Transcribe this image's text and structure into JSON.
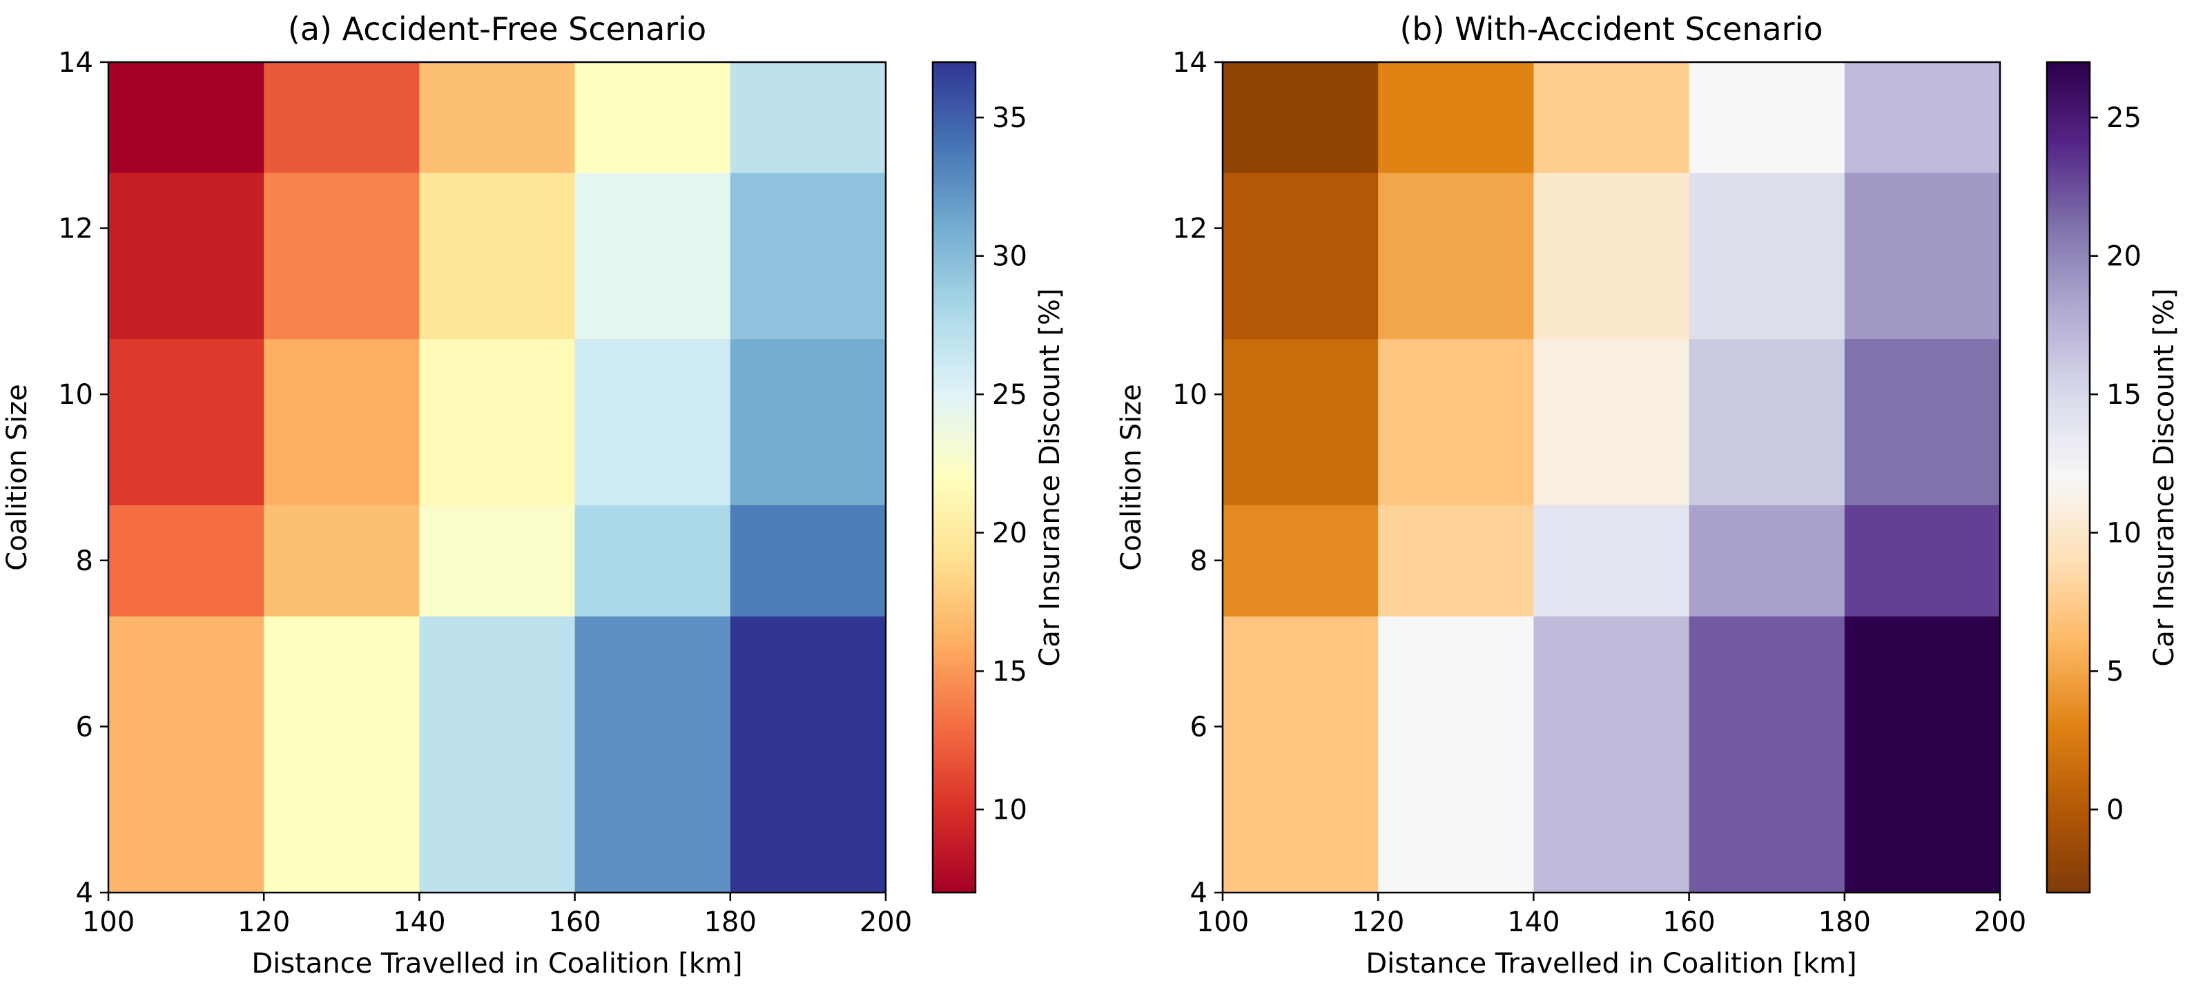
{
  "chart_data": [
    {
      "type": "heatmap",
      "title": "(a) Accident-Free Scenario",
      "xlabel": "Distance Travelled in Coalition [km]",
      "ylabel": "Coalition Size",
      "x_edges": [
        100,
        120,
        140,
        160,
        180,
        200
      ],
      "y_edges": [
        4,
        7.33,
        8.67,
        10.67,
        12.67,
        14
      ],
      "xlim": [
        100,
        200
      ],
      "ylim": [
        4,
        14
      ],
      "xticks": [
        "100",
        "120",
        "140",
        "160",
        "180",
        "200"
      ],
      "yticks": [
        "4",
        "6",
        "8",
        "10",
        "12",
        "14"
      ],
      "colorbar": {
        "label": "Car Insurance Discount [%]",
        "range": [
          7,
          37
        ],
        "ticks": [
          "10",
          "15",
          "20",
          "25",
          "30",
          "35"
        ],
        "colormap": "RdYlBu"
      },
      "values": [
        [
          16.5,
          22.0,
          27.0,
          32.5,
          37.0
        ],
        [
          13.0,
          17.0,
          22.5,
          28.0,
          33.5
        ],
        [
          10.5,
          16.0,
          21.5,
          26.0,
          31.0
        ],
        [
          9.0,
          14.0,
          19.5,
          24.5,
          29.5
        ],
        [
          7.0,
          12.0,
          17.0,
          22.0,
          27.0
        ]
      ]
    },
    {
      "type": "heatmap",
      "title": "(b) With-Accident Scenario",
      "xlabel": "Distance Travelled in Coalition [km]",
      "ylabel": "Coalition Size",
      "x_edges": [
        100,
        120,
        140,
        160,
        180,
        200
      ],
      "y_edges": [
        4,
        7.33,
        8.67,
        10.67,
        12.67,
        14
      ],
      "xlim": [
        100,
        200
      ],
      "ylim": [
        4,
        14
      ],
      "xticks": [
        "100",
        "120",
        "140",
        "160",
        "180",
        "200"
      ],
      "yticks": [
        "4",
        "6",
        "8",
        "10",
        "12",
        "14"
      ],
      "colorbar": {
        "label": "Car Insurance Discount [%]",
        "range": [
          -3,
          27
        ],
        "ticks": [
          "0",
          "5",
          "10",
          "15",
          "20",
          "25"
        ],
        "colormap": "PuOr"
      },
      "values": [
        [
          7.0,
          12.0,
          17.0,
          22.0,
          27.0
        ],
        [
          3.5,
          8.0,
          14.0,
          18.5,
          23.0
        ],
        [
          1.5,
          7.0,
          11.0,
          16.0,
          21.0
        ],
        [
          0.0,
          5.0,
          10.0,
          14.5,
          19.0
        ],
        [
          -2.0,
          3.0,
          7.5,
          12.0,
          17.0
        ]
      ]
    }
  ],
  "colors": {
    "RdYlBu": [
      "#a50026",
      "#d73027",
      "#f46d43",
      "#fdae61",
      "#fee090",
      "#ffffbf",
      "#e0f3f8",
      "#abd9e9",
      "#74add1",
      "#4575b4",
      "#313695"
    ],
    "PuOr": [
      "#7f3b08",
      "#b35806",
      "#e08214",
      "#fdb863",
      "#fee0b6",
      "#f7f7f7",
      "#d8daeb",
      "#b2abd2",
      "#8073ac",
      "#542788",
      "#2d004b"
    ]
  }
}
